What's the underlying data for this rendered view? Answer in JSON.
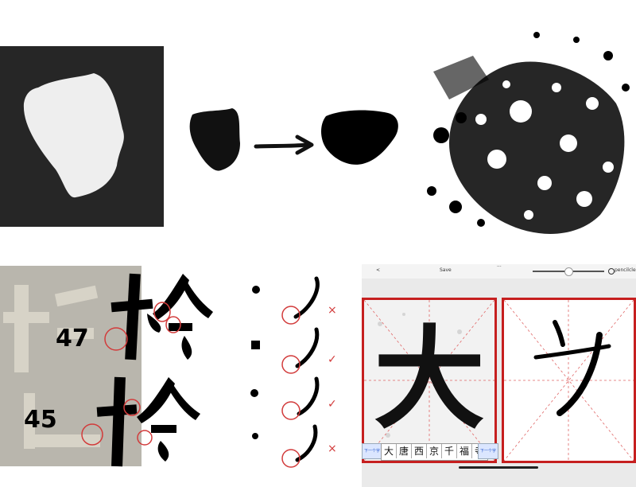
{
  "labels": {
    "sample_47": "47",
    "sample_45": "45"
  },
  "checks": [
    "×",
    "✓",
    "✓",
    "×"
  ],
  "app": {
    "back": "<",
    "save": "Save",
    "more": "···",
    "tool_mode": "pencil",
    "clear": "clea",
    "prev_button": "下一个字",
    "next_button": "下一个字",
    "char_strip": [
      "大",
      "唐",
      "西",
      "京",
      "千",
      "福",
      "寺"
    ],
    "model_char": "大",
    "traced_char": "ㄗ"
  }
}
